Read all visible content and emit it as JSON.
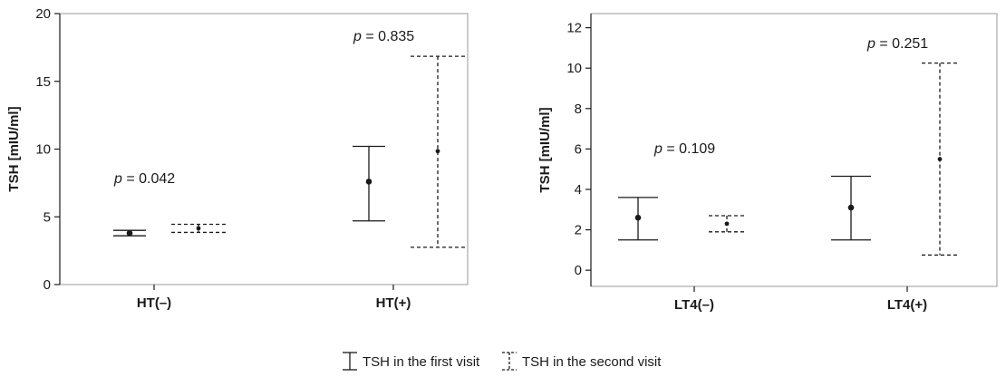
{
  "chart_data": [
    {
      "type": "errorbar",
      "ylabel": "TSH [mIU/ml]",
      "ylim": [
        0,
        20
      ],
      "yticks": [
        "0",
        "5",
        "10",
        "15",
        "20"
      ],
      "categories": [
        "HT(–)",
        "HT(+)"
      ],
      "series": [
        {
          "name": "TSH in the first visit",
          "style": "solid",
          "values": [
            {
              "mean": 3.8,
              "low": 3.6,
              "high": 4.0
            },
            {
              "mean": 7.6,
              "low": 4.7,
              "high": 10.2
            }
          ]
        },
        {
          "name": "TSH in the second visit",
          "style": "dashed",
          "values": [
            {
              "mean": 4.15,
              "low": 3.85,
              "high": 4.45
            },
            {
              "mean": 9.85,
              "low": 2.75,
              "high": 16.85
            }
          ]
        }
      ],
      "annotations": [
        {
          "category": "HT(–)",
          "prefix": "p",
          "value": "= 0.042",
          "y": 7.5
        },
        {
          "category": "HT(+)",
          "prefix": "p",
          "value": "= 0.835",
          "y": 18.0
        }
      ]
    },
    {
      "type": "errorbar",
      "ylabel": "TSH [mIU/ml]",
      "ylim": [
        -0.8,
        12.7
      ],
      "yticks": [
        "0",
        "2",
        "4",
        "6",
        "8",
        "10",
        "12"
      ],
      "categories": [
        "LT4(–)",
        "LT4(+)"
      ],
      "series": [
        {
          "name": "TSH in the first visit",
          "style": "solid",
          "values": [
            {
              "mean": 2.6,
              "low": 1.5,
              "high": 3.6
            },
            {
              "mean": 3.1,
              "low": 1.5,
              "high": 4.65
            }
          ]
        },
        {
          "name": "TSH in the second visit",
          "style": "dashed",
          "values": [
            {
              "mean": 2.3,
              "low": 1.9,
              "high": 2.7
            },
            {
              "mean": 5.5,
              "low": 0.75,
              "high": 10.25
            }
          ]
        }
      ],
      "annotations": [
        {
          "category": "LT4(–)",
          "prefix": "p",
          "value": "= 0.109",
          "y": 5.8
        },
        {
          "category": "LT4(+)",
          "prefix": "p",
          "value": "= 0.251",
          "y": 11.0
        }
      ]
    }
  ],
  "legend": {
    "first_label": "TSH in the first visit",
    "second_label": "TSH in the second visit"
  }
}
